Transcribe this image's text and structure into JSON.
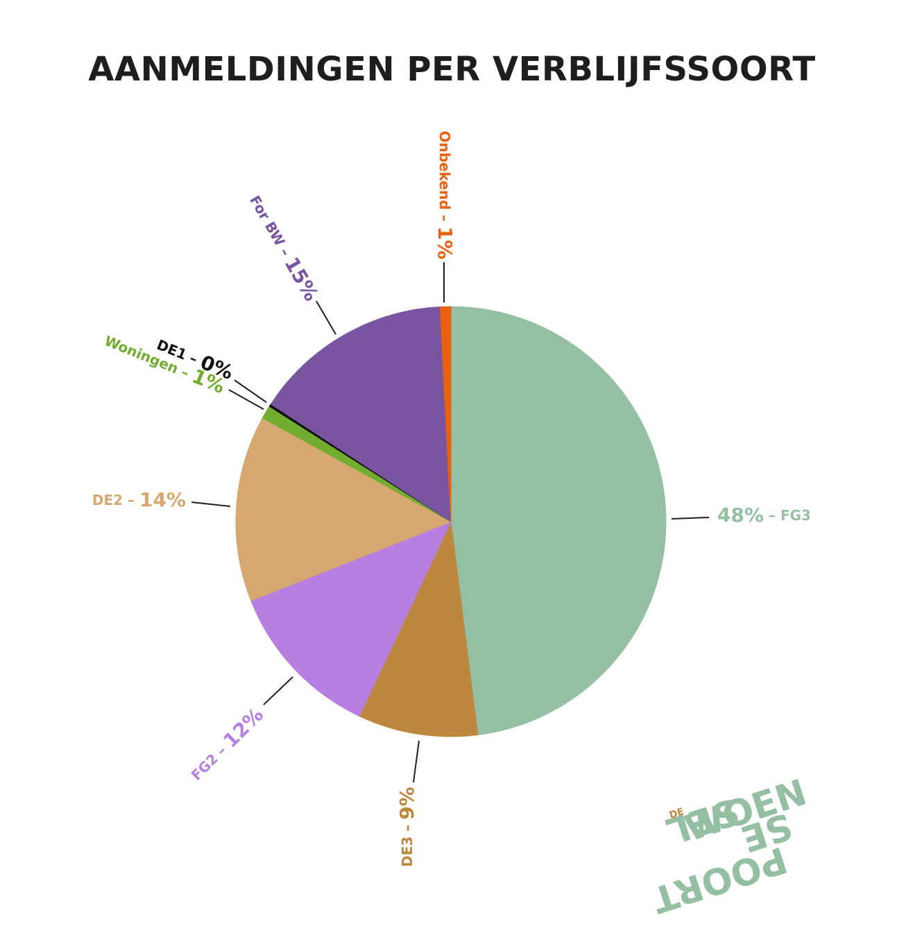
{
  "title": "AANMELDINGEN PER VERBLIJFSSOORT",
  "chart_data": {
    "type": "pie",
    "title": "AANMELDINGEN PER VERBLIJFSSOORT",
    "slices": [
      {
        "name": "FG3",
        "percent_label": "48%",
        "value": 48.0,
        "color": "#94bfa3"
      },
      {
        "name": "DE3",
        "percent_label": "9%",
        "value": 9.0,
        "color": "#be873e"
      },
      {
        "name": "FG2",
        "percent_label": "12%",
        "value": 12.0,
        "color": "#b780e0"
      },
      {
        "name": "DE2",
        "percent_label": "14%",
        "value": 14.0,
        "color": "#d6a86f"
      },
      {
        "name": "Woningen",
        "percent_label": "1%",
        "value": 1.0,
        "color": "#72ad2f"
      },
      {
        "name": "DE1",
        "percent_label": "0%",
        "value": 0.2,
        "color": "#111111"
      },
      {
        "name": "For BW",
        "percent_label": "15%",
        "value": 15.0,
        "color": "#7955a0"
      },
      {
        "name": "Onbekend",
        "percent_label": "1%",
        "value": 0.8,
        "color": "#e8620f"
      }
    ]
  },
  "logo": {
    "small": "DE",
    "line1": "WOEN",
    "line2": "SEL",
    "line3": "SE",
    "line4": "POORT",
    "color": "#94bfa3",
    "accent": "#be873e"
  }
}
